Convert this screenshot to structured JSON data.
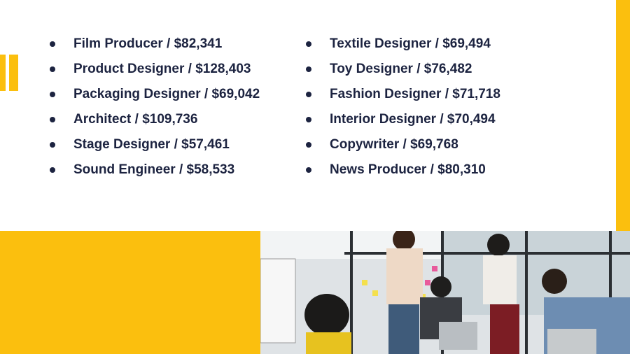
{
  "lists": [
    {
      "items": [
        "Film Producer / $82,341",
        "Product Designer / $128,403",
        "Packaging Designer / $69,042",
        "Architect / $109,736",
        "Stage Designer / $57,461",
        "Sound Engineer / $58,533"
      ]
    },
    {
      "items": [
        "Textile Designer / $69,494",
        "Toy Designer / $76,482",
        "Fashion Designer / $71,718",
        "Interior Designer / $70,494",
        "Copywriter / $69,768",
        "News Producer / $80,310"
      ]
    }
  ]
}
